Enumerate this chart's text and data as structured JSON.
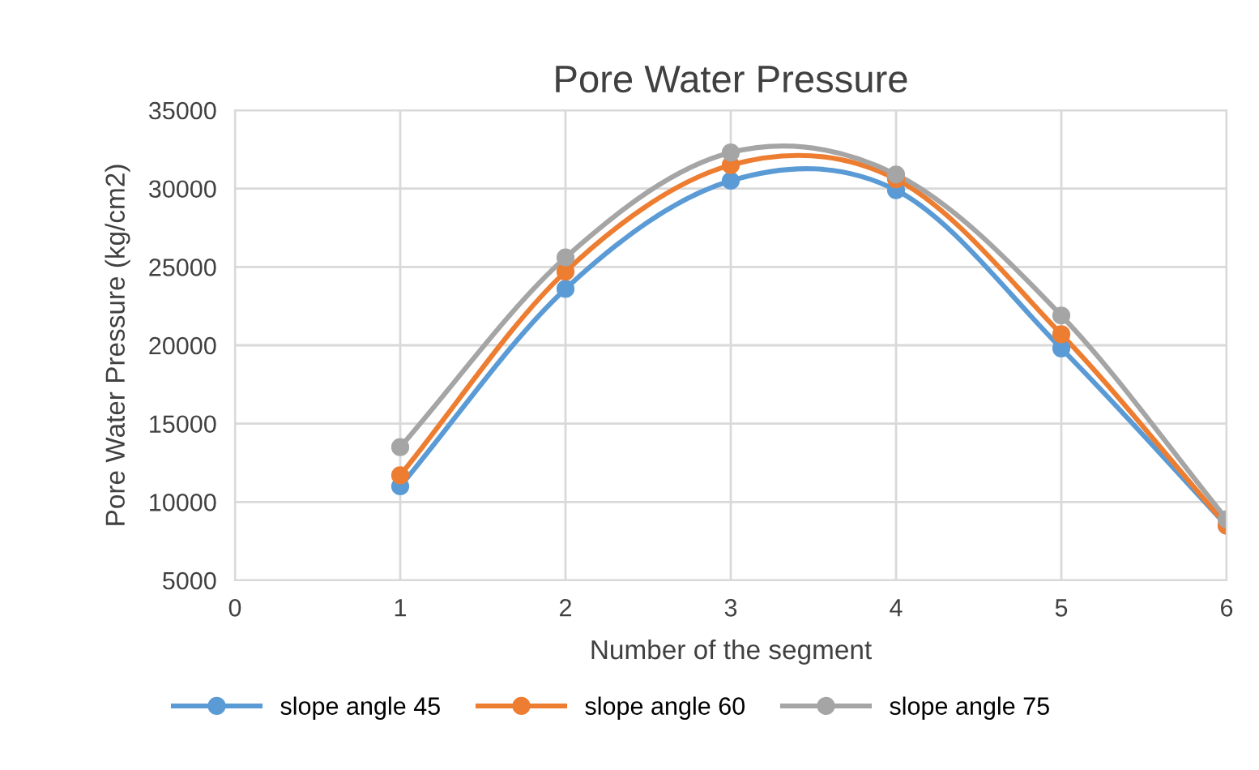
{
  "chart_data": {
    "type": "line",
    "title": "Pore Water Pressure",
    "xlabel": "Number of the segment",
    "ylabel": "Pore Water Pressure (kg/cm2)",
    "x": [
      1,
      2,
      3,
      4,
      5,
      6
    ],
    "series": [
      {
        "name": "slope angle 45",
        "color": "#5b9bd5",
        "values": [
          11000,
          23600,
          30500,
          29900,
          19800,
          8500
        ]
      },
      {
        "name": "slope angle 60",
        "color": "#ed7d31",
        "values": [
          11700,
          24700,
          31500,
          30600,
          20700,
          8500
        ]
      },
      {
        "name": "slope angle 75",
        "color": "#a5a5a5",
        "values": [
          13500,
          25600,
          32300,
          30900,
          21900,
          8900
        ]
      }
    ],
    "xlim": [
      0,
      6
    ],
    "xticks": [
      0,
      1,
      2,
      3,
      4,
      5,
      6
    ],
    "ylim": [
      5000,
      35000
    ],
    "yticks": [
      5000,
      10000,
      15000,
      20000,
      25000,
      30000,
      35000
    ],
    "grid": true,
    "legend": "bottom",
    "marker": "circle",
    "line_style": "solid"
  }
}
